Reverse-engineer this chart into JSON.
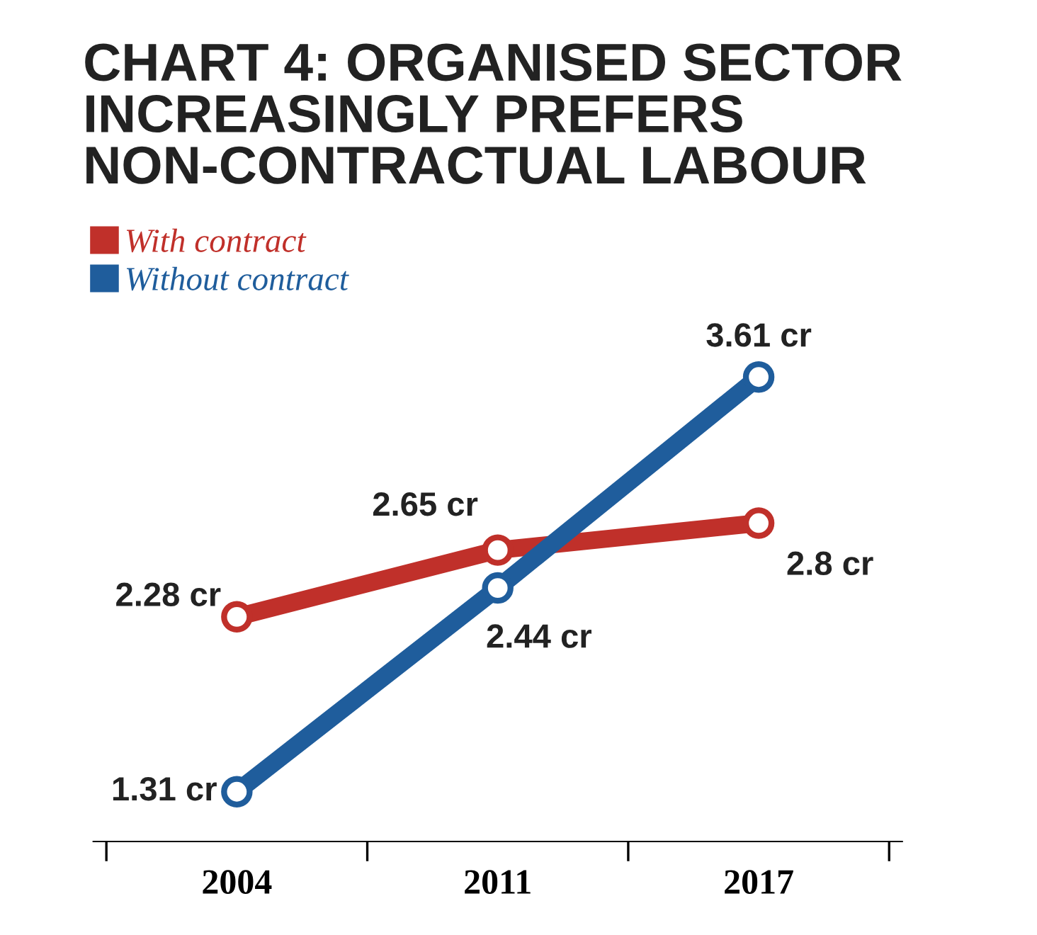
{
  "chart_data": {
    "type": "line",
    "title": "CHART 4: ORGANISED SECTOR\nINCREASINGLY PREFERS\nNON-CONTRACTUAL LABOUR",
    "categories": [
      "2004",
      "2011",
      "2017"
    ],
    "series": [
      {
        "name": "With contract",
        "color": "#c0302a",
        "values": [
          2.28,
          2.65,
          2.8
        ],
        "value_labels": [
          "2.28 cr",
          "2.65 cr",
          "2.8 cr"
        ]
      },
      {
        "name": "Without contract",
        "color": "#1f5d9c",
        "values": [
          1.31,
          2.44,
          3.61
        ],
        "value_labels": [
          "1.31 cr",
          "2.44 cr",
          "3.61 cr"
        ]
      }
    ],
    "legend": "top left",
    "marker": "circle",
    "line_style": "solid",
    "grid": false
  }
}
